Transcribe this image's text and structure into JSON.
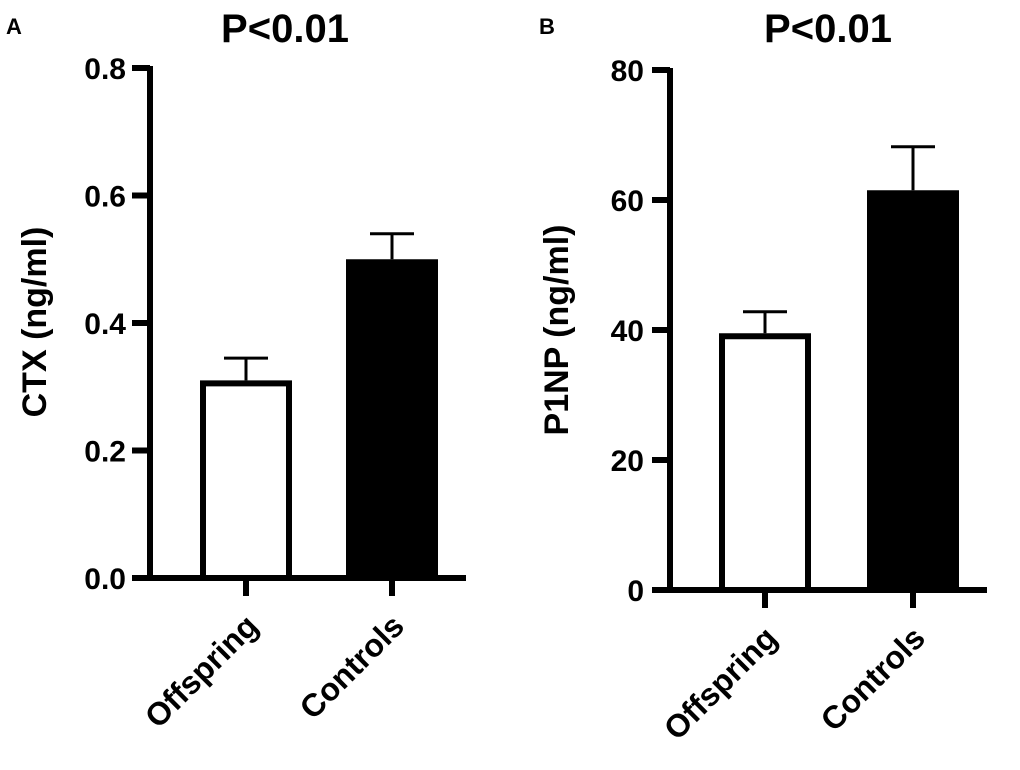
{
  "chart_data": [
    {
      "panel": "A",
      "type": "bar",
      "title": "P<0.01",
      "xlabel": "",
      "ylabel": "CTX (ng/ml)",
      "ylim": [
        0,
        0.8
      ],
      "yticks": [
        "0.0",
        "0.2",
        "0.4",
        "0.6",
        "0.8"
      ],
      "categories": [
        "Offspring",
        "Controls"
      ],
      "values": [
        0.31,
        0.5
      ],
      "error_upper": [
        0.345,
        0.54
      ],
      "bar_fills": [
        "#ffffff",
        "#000000"
      ]
    },
    {
      "panel": "B",
      "type": "bar",
      "title": "P<0.01",
      "xlabel": "",
      "ylabel": "P1NP (ng/ml)",
      "ylim": [
        0,
        80
      ],
      "yticks": [
        "0",
        "20",
        "40",
        "60",
        "80"
      ],
      "categories": [
        "Offspring",
        "Controls"
      ],
      "values": [
        39.5,
        61.5
      ],
      "error_upper": [
        42.8,
        68.2
      ],
      "bar_fills": [
        "#ffffff",
        "#000000"
      ]
    }
  ]
}
